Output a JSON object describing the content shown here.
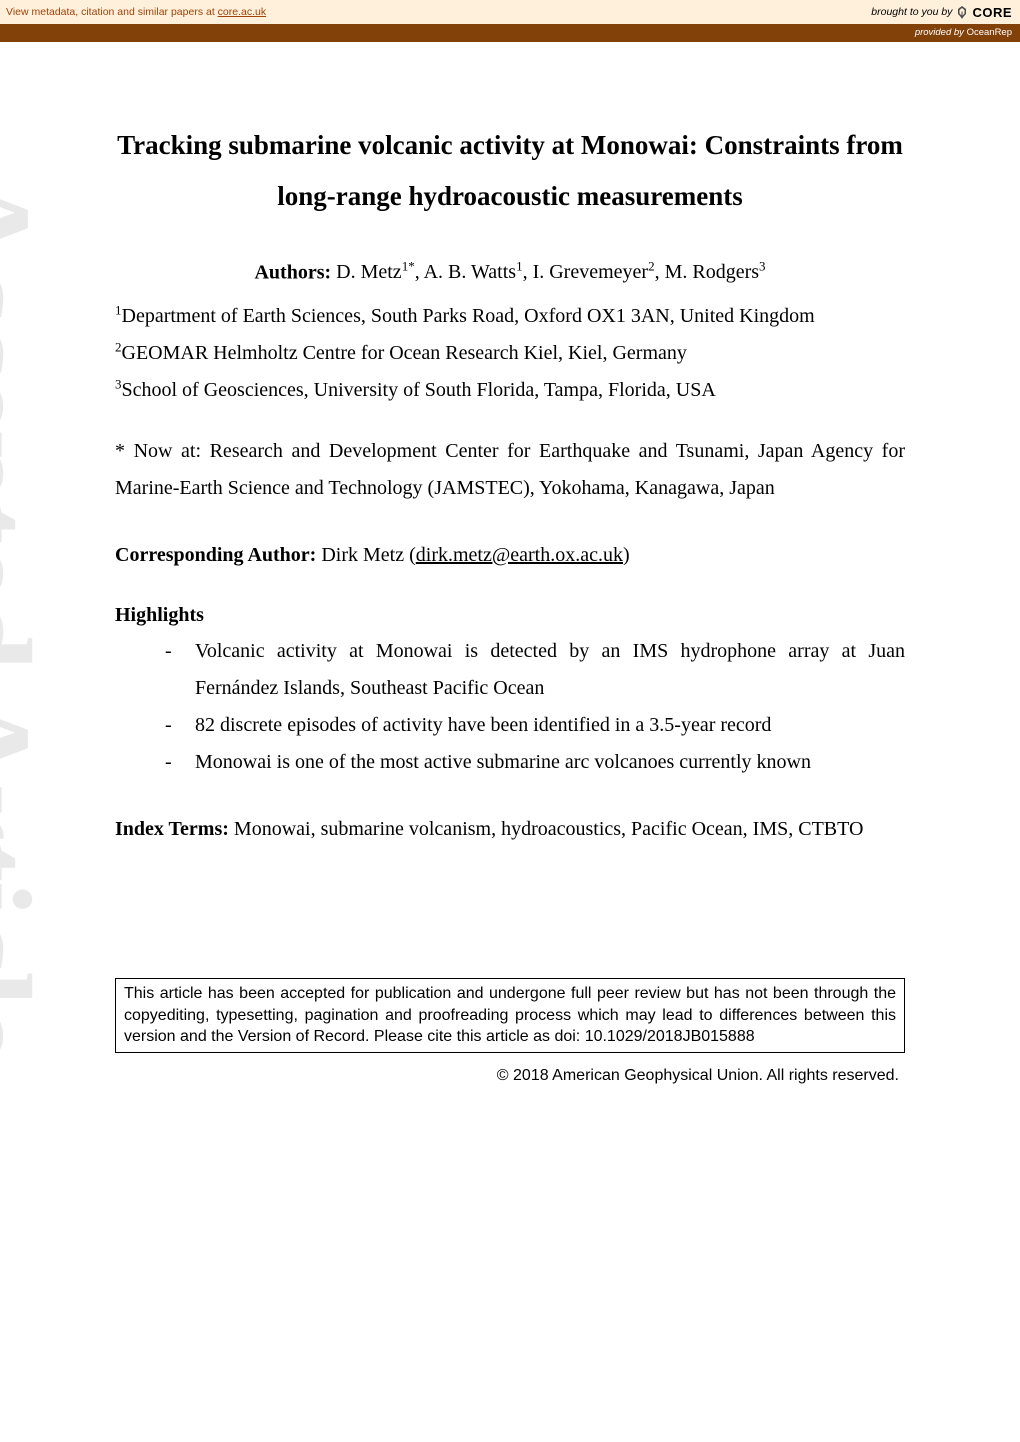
{
  "banner": {
    "left_prefix": "View metadata, citation and similar papers at ",
    "link_text": "core.ac.uk",
    "brought_by": "brought to you by",
    "core_label": "CORE",
    "provided_by_prefix": "provided by ",
    "source": "OceanRep"
  },
  "watermark": "Accepted Article",
  "title": "Tracking submarine volcanic activity at Monowai: Constraints from long-range hydroacoustic measurements",
  "authors": {
    "label": "Authors: ",
    "list": [
      {
        "name": "D. Metz",
        "sup": "1*"
      },
      {
        "name": "A. B. Watts",
        "sup": "1"
      },
      {
        "name": "I. Grevemeyer",
        "sup": "2"
      },
      {
        "name": "M. Rodgers",
        "sup": "3"
      }
    ]
  },
  "affiliations": [
    {
      "sup": "1",
      "text": "Department of Earth Sciences, South Parks Road, Oxford OX1 3AN, United Kingdom"
    },
    {
      "sup": "2",
      "text": "GEOMAR Helmholtz Centre for Ocean Research Kiel, Kiel, Germany"
    },
    {
      "sup": "3",
      "text": "School of Geosciences, University of South Florida, Tampa, Florida, USA"
    }
  ],
  "now_at": "* Now at: Research and Development Center for Earthquake and Tsunami, Japan Agency for Marine-Earth Science and Technology (JAMSTEC), Yokohama, Kanagawa, Japan",
  "corresponding": {
    "label": "Corresponding Author: ",
    "name": "Dirk Metz",
    "email": "dirk.metz@earth.ox.ac.uk"
  },
  "highlights": {
    "title": "Highlights",
    "items": [
      "Volcanic activity at Monowai is detected by an IMS hydrophone array at Juan Fernández Islands, Southeast Pacific Ocean",
      "82 discrete episodes of activity have been identified in a 3.5-year record",
      "Monowai is one of the most active submarine arc volcanoes currently known"
    ]
  },
  "index_terms": {
    "label": "Index Terms: ",
    "text": "Monowai, submarine volcanism, hydroacoustics, Pacific Ocean, IMS, CTBTO"
  },
  "notice": "This article has been accepted for publication and undergone full peer review but has not been through the copyediting, typesetting, pagination and proofreading process which may lead to differences between this version and the Version of Record. Please cite this article as doi: 10.1029/2018JB015888",
  "copyright": "© 2018 American Geophysical Union. All rights reserved.",
  "colors": {
    "banner_bg": "#fff0db",
    "banner_text": "#a0430a",
    "subbanner_bg": "#824109",
    "watermark": "#e9e9e9"
  }
}
